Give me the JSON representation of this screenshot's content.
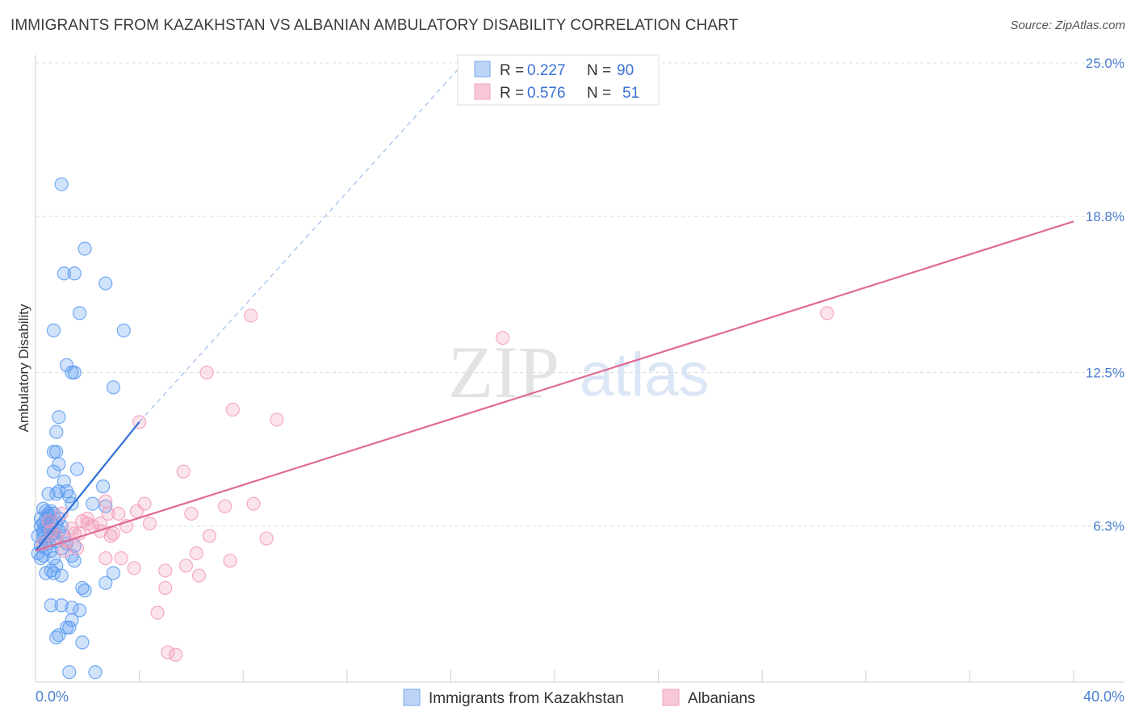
{
  "title": "IMMIGRANTS FROM KAZAKHSTAN VS ALBANIAN AMBULATORY DISABILITY CORRELATION CHART",
  "source": "Source: ZipAtlas.com",
  "watermark": {
    "zip": "ZIP",
    "atlas": "atlas"
  },
  "colors": {
    "blue": "#5b9bf0",
    "blue_line": "#2f6fd8",
    "pink": "#f29cba",
    "pink_line": "#e06a95",
    "grid": "#dddddd",
    "axis_label": "#4a7fd0"
  },
  "legend": {
    "rows": [
      {
        "r_label": "R = ",
        "r_value": "0.227",
        "n_label": "N = ",
        "n_value": "90"
      },
      {
        "r_label": "R = ",
        "r_value": "0.576",
        "n_label": "N = ",
        "n_value": "51"
      }
    ]
  },
  "bottom_legend": {
    "series1": "Immigrants from Kazakhstan",
    "series2": "Albanians"
  },
  "chart_data": {
    "type": "scatter",
    "title": "IMMIGRANTS FROM KAZAKHSTAN VS ALBANIAN AMBULATORY DISABILITY CORRELATION CHART",
    "ylabel": "Ambulatory Disability",
    "xlim": [
      0,
      40
    ],
    "ylim": [
      0,
      25
    ],
    "x_tick_labels": [
      "0.0%",
      "40.0%"
    ],
    "y_ticks": [
      6.3,
      12.5,
      18.8,
      25.0
    ],
    "y_tick_labels": [
      "6.3%",
      "12.5%",
      "18.8%",
      "25.0%"
    ],
    "series": [
      {
        "name": "Immigrants from Kazakhstan",
        "R": 0.227,
        "N": 90,
        "trend": {
          "x0": 0.0,
          "y0": 5.3,
          "x1": 4.0,
          "y1": 10.5
        },
        "trend_extension": {
          "x0": 4.0,
          "y0": 10.5,
          "x1": 16.5,
          "y1": 25.0
        },
        "points": [
          [
            1.0,
            20.1
          ],
          [
            1.9,
            17.5
          ],
          [
            1.1,
            16.5
          ],
          [
            1.5,
            16.5
          ],
          [
            2.7,
            16.1
          ],
          [
            1.7,
            14.9
          ],
          [
            0.7,
            14.2
          ],
          [
            3.4,
            14.2
          ],
          [
            1.2,
            12.8
          ],
          [
            1.4,
            12.5
          ],
          [
            1.5,
            12.5
          ],
          [
            3.0,
            11.9
          ],
          [
            0.9,
            10.7
          ],
          [
            0.8,
            10.1
          ],
          [
            0.7,
            9.3
          ],
          [
            0.8,
            9.3
          ],
          [
            0.9,
            8.8
          ],
          [
            1.6,
            8.6
          ],
          [
            0.7,
            8.5
          ],
          [
            1.1,
            8.1
          ],
          [
            2.6,
            7.9
          ],
          [
            1.2,
            7.7
          ],
          [
            0.5,
            7.6
          ],
          [
            0.8,
            7.6
          ],
          [
            0.9,
            7.7
          ],
          [
            1.3,
            7.5
          ],
          [
            1.4,
            7.2
          ],
          [
            2.2,
            7.2
          ],
          [
            2.7,
            7.1
          ],
          [
            0.3,
            7.0
          ],
          [
            0.4,
            6.9
          ],
          [
            0.5,
            6.8
          ],
          [
            0.6,
            6.9
          ],
          [
            0.2,
            6.6
          ],
          [
            0.4,
            6.6
          ],
          [
            0.3,
            6.4
          ],
          [
            0.6,
            6.5
          ],
          [
            0.8,
            6.4
          ],
          [
            1.0,
            6.3
          ],
          [
            0.2,
            6.3
          ],
          [
            0.3,
            6.1
          ],
          [
            0.5,
            6.2
          ],
          [
            0.7,
            6.0
          ],
          [
            0.9,
            6.1
          ],
          [
            0.1,
            5.9
          ],
          [
            0.3,
            5.8
          ],
          [
            0.6,
            5.9
          ],
          [
            0.8,
            5.7
          ],
          [
            1.2,
            5.6
          ],
          [
            0.2,
            5.5
          ],
          [
            0.4,
            5.4
          ],
          [
            0.6,
            5.3
          ],
          [
            1.0,
            5.4
          ],
          [
            1.5,
            5.5
          ],
          [
            0.1,
            5.2
          ],
          [
            0.3,
            5.1
          ],
          [
            0.7,
            5.0
          ],
          [
            1.4,
            5.1
          ],
          [
            1.5,
            4.9
          ],
          [
            0.8,
            4.7
          ],
          [
            0.6,
            4.5
          ],
          [
            0.4,
            4.4
          ],
          [
            1.0,
            4.3
          ],
          [
            0.7,
            4.4
          ],
          [
            3.0,
            4.4
          ],
          [
            2.7,
            4.0
          ],
          [
            1.8,
            3.8
          ],
          [
            1.9,
            3.7
          ],
          [
            0.6,
            3.1
          ],
          [
            1.0,
            3.1
          ],
          [
            1.4,
            3.0
          ],
          [
            1.7,
            2.9
          ],
          [
            1.4,
            2.5
          ],
          [
            1.2,
            2.2
          ],
          [
            1.3,
            2.2
          ],
          [
            0.9,
            1.9
          ],
          [
            0.8,
            1.8
          ],
          [
            1.8,
            1.6
          ],
          [
            1.3,
            0.4
          ],
          [
            2.3,
            0.4
          ],
          [
            0.5,
            6.7
          ],
          [
            0.4,
            5.7
          ],
          [
            0.2,
            5.0
          ],
          [
            0.9,
            6.6
          ],
          [
            0.6,
            6.2
          ],
          [
            1.1,
            5.9
          ],
          [
            0.3,
            6.0
          ],
          [
            0.5,
            5.6
          ],
          [
            0.7,
            6.8
          ],
          [
            0.4,
            6.3
          ]
        ]
      },
      {
        "name": "Albanians",
        "R": 0.576,
        "N": 51,
        "trend": {
          "x0": 0.0,
          "y0": 5.3,
          "x1": 40.0,
          "y1": 18.6
        },
        "points": [
          [
            8.3,
            14.8
          ],
          [
            30.5,
            14.9
          ],
          [
            18.0,
            13.9
          ],
          [
            6.6,
            12.5
          ],
          [
            7.6,
            11.0
          ],
          [
            9.3,
            10.6
          ],
          [
            4.0,
            10.5
          ],
          [
            5.7,
            8.5
          ],
          [
            2.7,
            7.3
          ],
          [
            4.2,
            7.2
          ],
          [
            7.3,
            7.1
          ],
          [
            8.4,
            7.2
          ],
          [
            2.8,
            6.8
          ],
          [
            3.2,
            6.8
          ],
          [
            3.9,
            6.9
          ],
          [
            6.0,
            6.8
          ],
          [
            1.8,
            6.5
          ],
          [
            2.0,
            6.4
          ],
          [
            2.2,
            6.3
          ],
          [
            2.5,
            6.4
          ],
          [
            3.5,
            6.3
          ],
          [
            4.4,
            6.4
          ],
          [
            1.4,
            6.2
          ],
          [
            1.7,
            6.0
          ],
          [
            3.0,
            6.0
          ],
          [
            0.8,
            5.9
          ],
          [
            1.2,
            5.7
          ],
          [
            2.9,
            5.9
          ],
          [
            6.7,
            5.9
          ],
          [
            8.9,
            5.8
          ],
          [
            1.6,
            5.4
          ],
          [
            2.7,
            5.0
          ],
          [
            3.3,
            5.0
          ],
          [
            6.2,
            5.2
          ],
          [
            7.5,
            4.9
          ],
          [
            3.8,
            4.6
          ],
          [
            5.0,
            4.5
          ],
          [
            5.8,
            4.7
          ],
          [
            6.3,
            4.3
          ],
          [
            5.0,
            3.8
          ],
          [
            4.7,
            2.8
          ],
          [
            5.1,
            1.2
          ],
          [
            5.4,
            1.1
          ],
          [
            0.6,
            6.1
          ],
          [
            1.1,
            5.3
          ],
          [
            0.3,
            5.6
          ],
          [
            2.0,
            6.6
          ],
          [
            2.5,
            6.1
          ],
          [
            1.0,
            6.8
          ],
          [
            1.5,
            6.0
          ],
          [
            0.5,
            6.5
          ]
        ]
      }
    ]
  }
}
